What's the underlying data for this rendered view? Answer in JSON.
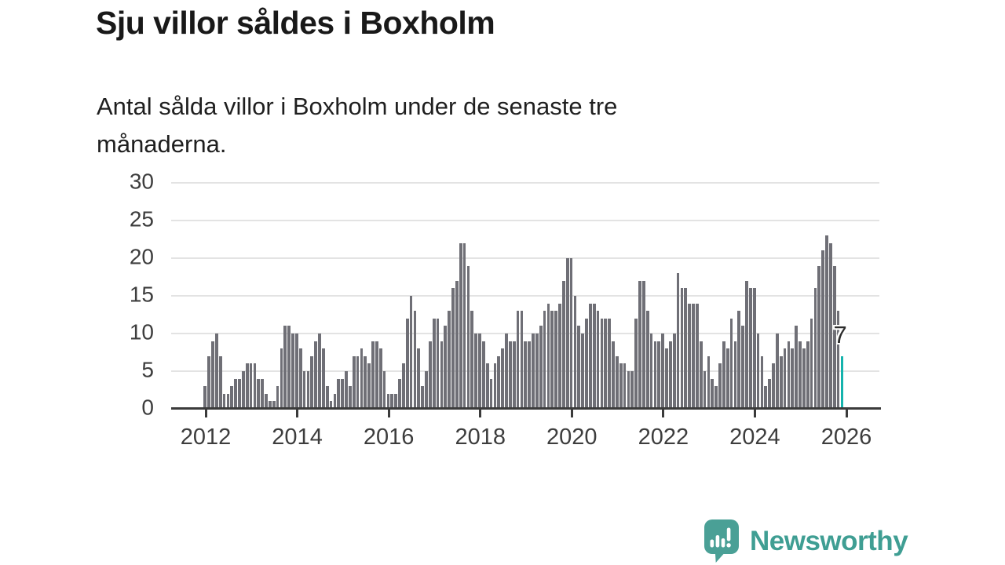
{
  "header": {
    "title": "Sju villor såldes i Boxholm",
    "subtitle": "Antal sålda villor i Boxholm under de senaste tre månaderna."
  },
  "chart_data": {
    "type": "bar",
    "title": "Sju villor såldes i Boxholm",
    "subtitle": "Antal sålda villor i Boxholm under de senaste tre månaderna.",
    "x_start": "2012-01",
    "x_end": "2025-12",
    "x_tick_years": [
      "2012",
      "2014",
      "2016",
      "2018",
      "2020",
      "2022",
      "2024",
      "2026"
    ],
    "y_ticks": [
      0,
      5,
      10,
      15,
      20,
      25,
      30
    ],
    "ylim": [
      0,
      30
    ],
    "grid": true,
    "bar_color": "#6f6f76",
    "highlight_color": "#15b3ad",
    "highlight_index": 167,
    "highlight_label": "7",
    "values": [
      3,
      7,
      9,
      10,
      7,
      2,
      2,
      3,
      4,
      4,
      5,
      6,
      6,
      6,
      4,
      4,
      2,
      1,
      1,
      3,
      8,
      11,
      11,
      10,
      10,
      8,
      5,
      5,
      7,
      9,
      10,
      8,
      3,
      1,
      2,
      4,
      4,
      5,
      3,
      7,
      7,
      8,
      7,
      6,
      9,
      9,
      8,
      5,
      2,
      2,
      2,
      4,
      6,
      12,
      15,
      13,
      8,
      3,
      5,
      9,
      12,
      12,
      9,
      11,
      13,
      16,
      17,
      22,
      22,
      19,
      13,
      10,
      10,
      9,
      6,
      4,
      6,
      7,
      8,
      10,
      9,
      9,
      13,
      13,
      9,
      9,
      10,
      10,
      11,
      13,
      14,
      13,
      13,
      14,
      17,
      20,
      20,
      15,
      11,
      10,
      12,
      14,
      14,
      13,
      12,
      12,
      12,
      9,
      7,
      6,
      6,
      5,
      5,
      12,
      17,
      17,
      13,
      10,
      9,
      9,
      10,
      8,
      9,
      10,
      18,
      16,
      16,
      14,
      14,
      14,
      9,
      5,
      7,
      4,
      3,
      6,
      9,
      8,
      12,
      9,
      13,
      11,
      17,
      16,
      16,
      10,
      7,
      3,
      4,
      6,
      10,
      7,
      8,
      9,
      8,
      11,
      9,
      8,
      9,
      12,
      16,
      19,
      21,
      23,
      22,
      19,
      13,
      7
    ]
  },
  "footer": {
    "brand": "Newsworthy",
    "logo_icon": "newsworthy-speech-bubble-chart-icon",
    "brand_color": "#3f9e93",
    "icon_color": "#4aa096"
  }
}
